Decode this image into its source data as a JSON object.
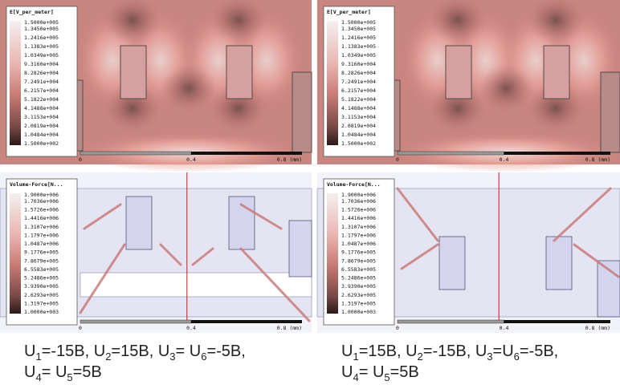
{
  "panels": [
    {
      "legend_title": "E[V_per_meter]",
      "legend_labels": [
        "1.5000e+005",
        "1.3450e+005",
        "1.2416e+005",
        "1.1383e+005",
        "1.0349e+005",
        "9.3160e+004",
        "8.2826e+004",
        "7.2491e+004",
        "6.2157e+004",
        "5.1822e+004",
        "4.1488e+004",
        "3.1153e+004",
        "2.0819e+004",
        "1.0484e+004",
        "1.5000e+002"
      ],
      "scale_labels": [
        "0",
        "0.4",
        "0.8 (mm)"
      ]
    },
    {
      "legend_title": "E[V_per_meter]",
      "legend_labels": [
        "1.5000e+005",
        "1.3450e+005",
        "1.2416e+005",
        "1.1383e+005",
        "1.0349e+005",
        "9.3160e+004",
        "8.2826e+004",
        "7.2491e+004",
        "6.2157e+004",
        "5.1822e+004",
        "4.1488e+004",
        "3.1153e+004",
        "2.0819e+004",
        "1.0484e+004",
        "1.5000e+002"
      ],
      "scale_labels": [
        "0",
        "0.4",
        "0.8 (mm)"
      ]
    },
    {
      "legend_title": "Volume-Force[N...",
      "legend_labels": [
        "1.9000e+006",
        "1.7036e+006",
        "1.5726e+006",
        "1.4416e+006",
        "1.3107e+006",
        "1.1797e+006",
        "1.0487e+006",
        "9.1776e+005",
        "7.8679e+005",
        "6.5583e+005",
        "5.2486e+005",
        "3.9390e+005",
        "2.6293e+005",
        "1.3197e+005",
        "1.0000e+003"
      ],
      "scale_labels": [
        "0",
        "0.4",
        "0.8 (mm)"
      ]
    },
    {
      "legend_title": "Volume-Force[N...",
      "legend_labels": [
        "1.9000e+006",
        "1.7036e+006",
        "1.5726e+006",
        "1.4416e+006",
        "1.3107e+006",
        "1.1797e+006",
        "1.0487e+006",
        "9.1776e+005",
        "7.8679e+005",
        "6.5583e+005",
        "5.2486e+005",
        "3.9390e+005",
        "2.6293e+005",
        "1.3197e+005",
        "1.0000e+003"
      ],
      "scale_labels": [
        "0",
        "0.4",
        "0.8 (mm)"
      ]
    }
  ],
  "captions": [
    {
      "line1": [
        {
          "base": "U",
          "sub": "1",
          "rest": "=-15B, "
        },
        {
          "base": "U",
          "sub": "2",
          "rest": "=15B, "
        },
        {
          "base": "U",
          "sub": "3",
          "rest": "= "
        },
        {
          "base": "U",
          "sub": "6",
          "rest": "=-5B,"
        }
      ],
      "line2": [
        {
          "base": "U",
          "sub": "4",
          "rest": "= "
        },
        {
          "base": "U",
          "sub": "5",
          "rest": "=5B"
        }
      ]
    },
    {
      "line1": [
        {
          "base": "U",
          "sub": "1",
          "rest": "=15B, "
        },
        {
          "base": "U",
          "sub": "2",
          "rest": "=-15B, "
        },
        {
          "base": "U",
          "sub": "3",
          "rest": "="
        },
        {
          "base": "U",
          "sub": "6",
          "rest": "=-5B,"
        }
      ],
      "line2": [
        {
          "base": "U",
          "sub": "4",
          "rest": "= "
        },
        {
          "base": "U",
          "sub": "5",
          "rest": "=5B"
        }
      ]
    }
  ]
}
